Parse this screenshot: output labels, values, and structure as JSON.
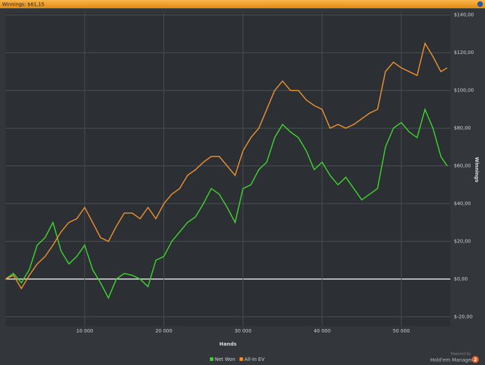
{
  "chart_data": {
    "type": "line",
    "title": "Winnings: $61,15",
    "x_label": "Hands",
    "y_label": "Winnings",
    "footer": {
      "line1": "Powered by",
      "line2": "Hold'em Manager",
      "badge": "2"
    },
    "x": [
      0,
      1000,
      2000,
      3000,
      4000,
      5000,
      6000,
      7000,
      8000,
      9000,
      10000,
      11000,
      12000,
      13000,
      14000,
      15000,
      16000,
      17000,
      18000,
      19000,
      20000,
      21000,
      22000,
      23000,
      24000,
      25000,
      26000,
      27000,
      28000,
      29000,
      30000,
      31000,
      32000,
      33000,
      34000,
      35000,
      36000,
      37000,
      38000,
      39000,
      40000,
      41000,
      42000,
      43000,
      44000,
      45000,
      46000,
      47000,
      48000,
      49000,
      50000,
      51000,
      52000,
      53000,
      54000,
      55000,
      55800
    ],
    "series": [
      {
        "name": "Net Won",
        "color": "#3cd62a",
        "values": [
          0,
          3,
          -2,
          5,
          18,
          22,
          30,
          15,
          8,
          12,
          18,
          5,
          -2,
          -10,
          0,
          3,
          2,
          0,
          -4,
          10,
          12,
          20,
          25,
          30,
          33,
          40,
          48,
          45,
          38,
          30,
          48,
          50,
          58,
          62,
          75,
          82,
          78,
          75,
          68,
          58,
          62,
          55,
          50,
          54,
          48,
          42,
          45,
          48,
          70,
          80,
          83,
          78,
          75,
          90,
          80,
          65,
          60
        ]
      },
      {
        "name": "All-In EV",
        "color": "#f0922c",
        "values": [
          0,
          2,
          -5,
          2,
          8,
          12,
          18,
          25,
          30,
          32,
          38,
          30,
          22,
          20,
          28,
          35,
          35,
          32,
          38,
          32,
          40,
          45,
          48,
          55,
          58,
          62,
          65,
          65,
          60,
          55,
          68,
          75,
          80,
          90,
          100,
          105,
          100,
          100,
          95,
          92,
          90,
          80,
          82,
          80,
          82,
          85,
          88,
          90,
          110,
          115,
          112,
          110,
          108,
          125,
          118,
          110,
          112
        ]
      }
    ],
    "xlim": [
      0,
      56200
    ],
    "ylim": [
      -25,
      141
    ],
    "xticks": [
      {
        "value": 10000,
        "label": "10 000"
      },
      {
        "value": 20000,
        "label": "20 000"
      },
      {
        "value": 30000,
        "label": "30 000"
      },
      {
        "value": 40000,
        "label": "40 000"
      },
      {
        "value": 50000,
        "label": "50 000"
      }
    ],
    "yticks": [
      {
        "value": -20,
        "label": "$-20,00"
      },
      {
        "value": 0,
        "label": "$0,00"
      },
      {
        "value": 20,
        "label": "$20,00"
      },
      {
        "value": 40,
        "label": "$40,00"
      },
      {
        "value": 60,
        "label": "$60,00"
      },
      {
        "value": 80,
        "label": "$80,00"
      },
      {
        "value": 100,
        "label": "$100,00"
      },
      {
        "value": 120,
        "label": "$120,00"
      },
      {
        "value": 140,
        "label": "$140,00"
      }
    ],
    "grid": true
  }
}
